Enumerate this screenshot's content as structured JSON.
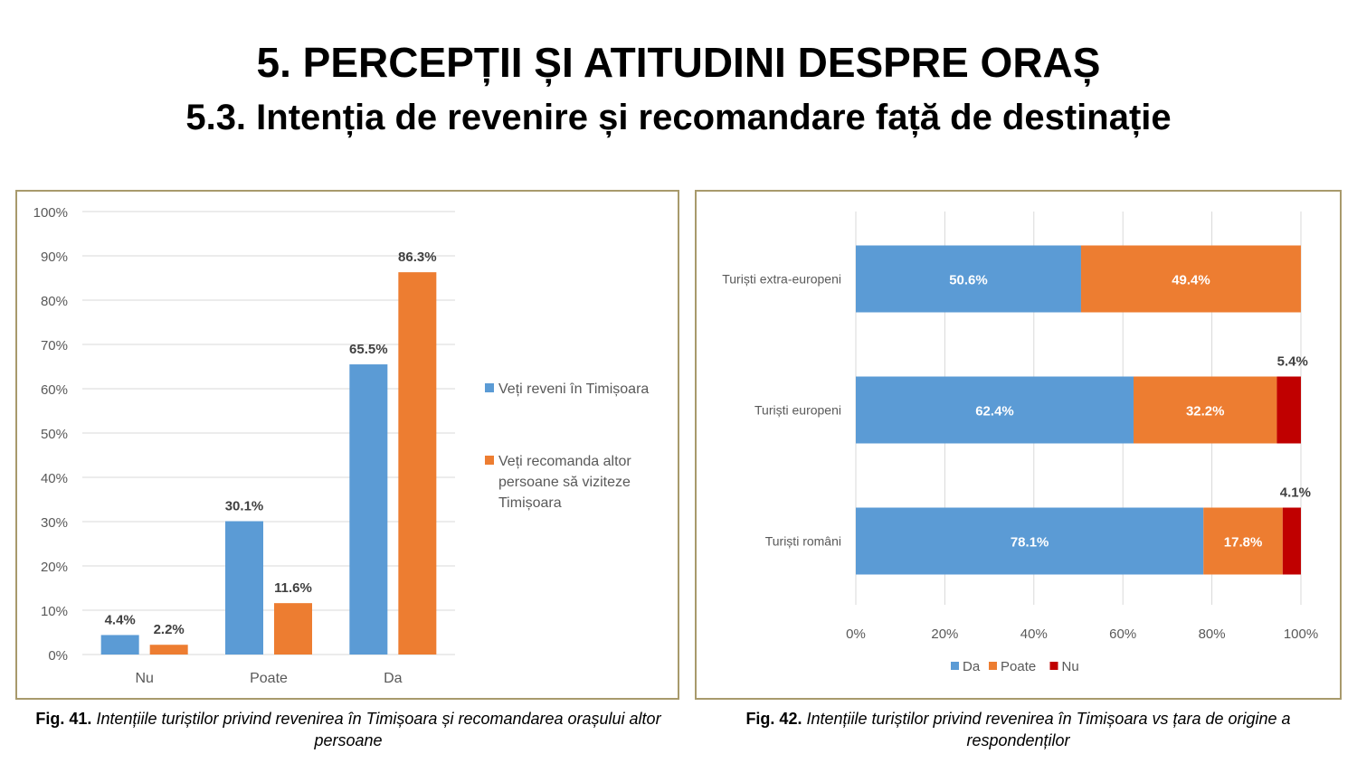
{
  "header": {
    "title": "5. PERCEPȚII ȘI ATITUDINI DESPRE ORAȘ",
    "subtitle": "5.3. Intenția de revenire și recomandare față de destinație"
  },
  "colors": {
    "blue": "#5b9bd5",
    "orange": "#ed7d31",
    "red": "#c00000",
    "axis": "#d9d9d9",
    "text": "#595959",
    "frame": "#a89a6c"
  },
  "captions": {
    "fig41": {
      "label": "Fig. 41.",
      "text": "Intențiile turiștilor privind revenirea în Timișoara și recomandarea orașului altor persoane"
    },
    "fig42": {
      "label": "Fig. 42.",
      "text": "Intențiile turiștilor privind revenirea în Timișoara vs țara de origine a respondenților"
    }
  },
  "chart_data": [
    {
      "type": "bar",
      "categories": [
        "Nu",
        "Poate",
        "Da"
      ],
      "series": [
        {
          "name": "Veți reveni în Timișoara",
          "values": [
            4.4,
            30.1,
            65.5
          ],
          "labels": [
            "4.4%",
            "30.1%",
            "65.5%"
          ]
        },
        {
          "name": "Veți recomanda altor persoane să viziteze Timișoara",
          "values": [
            2.2,
            11.6,
            86.3
          ],
          "labels": [
            "2.2%",
            "11.6%",
            "86.3%"
          ]
        }
      ],
      "yticks": [
        "0%",
        "10%",
        "20%",
        "30%",
        "40%",
        "50%",
        "60%",
        "70%",
        "80%",
        "90%",
        "100%"
      ],
      "ylim": [
        0,
        100
      ],
      "legend_position": "right"
    },
    {
      "type": "bar",
      "orientation": "horizontal",
      "stacked": true,
      "categories": [
        "Turiști extra-europeni",
        "Turiști europeni",
        "Turiști români"
      ],
      "series": [
        {
          "name": "Da",
          "values": [
            50.6,
            62.4,
            78.1
          ],
          "labels": [
            "50.6%",
            "62.4%",
            "78.1%"
          ]
        },
        {
          "name": "Poate",
          "values": [
            49.4,
            32.2,
            17.8
          ],
          "labels": [
            "49.4%",
            "32.2%",
            "17.8%"
          ]
        },
        {
          "name": "Nu",
          "values": [
            0,
            5.4,
            4.1
          ],
          "labels": [
            "",
            "5.4%",
            "4.1%"
          ]
        }
      ],
      "xticks": [
        "0%",
        "20%",
        "40%",
        "60%",
        "80%",
        "100%"
      ],
      "xlim": [
        0,
        100
      ],
      "legend_position": "bottom"
    }
  ]
}
